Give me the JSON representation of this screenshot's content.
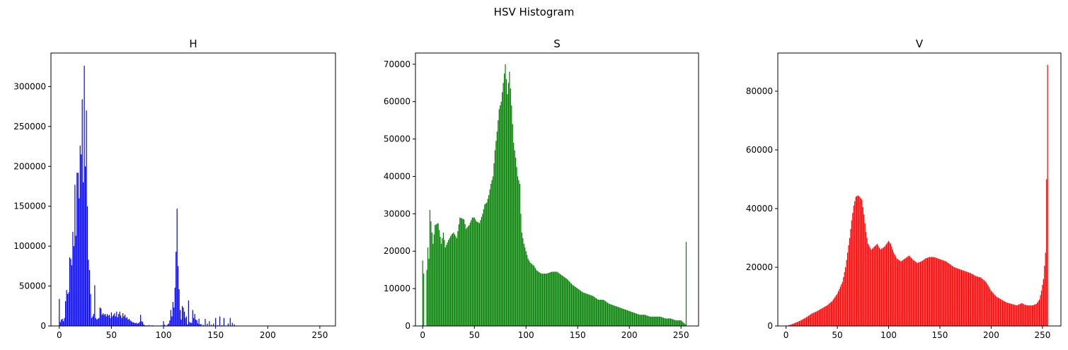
{
  "suptitle": "HSV Histogram",
  "chart_data": [
    {
      "type": "bar",
      "title": "H",
      "color": "#0000ff",
      "xlim": [
        -8,
        265
      ],
      "ylim": [
        0,
        342000
      ],
      "xticks": [
        0,
        50,
        100,
        150,
        200,
        250
      ],
      "yticks": [
        0,
        50000,
        100000,
        150000,
        200000,
        250000,
        300000
      ],
      "keypoints": [
        [
          0,
          34000
        ],
        [
          1,
          5000
        ],
        [
          2,
          8000
        ],
        [
          3,
          9000
        ],
        [
          4,
          6000
        ],
        [
          5,
          10000
        ],
        [
          6,
          31000
        ],
        [
          7,
          45000
        ],
        [
          8,
          40000
        ],
        [
          9,
          42000
        ],
        [
          10,
          86000
        ],
        [
          11,
          84000
        ],
        [
          12,
          76000
        ],
        [
          13,
          118000
        ],
        [
          14,
          100000
        ],
        [
          15,
          177000
        ],
        [
          16,
          113000
        ],
        [
          17,
          192000
        ],
        [
          18,
          192000
        ],
        [
          19,
          160000
        ],
        [
          20,
          226000
        ],
        [
          21,
          215000
        ],
        [
          22,
          284000
        ],
        [
          23,
          180000
        ],
        [
          24,
          326000
        ],
        [
          25,
          200000
        ],
        [
          26,
          270000
        ],
        [
          27,
          150000
        ],
        [
          28,
          83000
        ],
        [
          29,
          70000
        ],
        [
          30,
          40000
        ],
        [
          31,
          10000
        ],
        [
          32,
          12000
        ],
        [
          33,
          15000
        ],
        [
          34,
          51000
        ],
        [
          35,
          10000
        ],
        [
          36,
          8000
        ],
        [
          37,
          9000
        ],
        [
          38,
          10000
        ],
        [
          39,
          23000
        ],
        [
          40,
          22000
        ],
        [
          41,
          14000
        ],
        [
          42,
          16000
        ],
        [
          43,
          14000
        ],
        [
          44,
          15000
        ],
        [
          45,
          12000
        ],
        [
          46,
          15000
        ],
        [
          47,
          13000
        ],
        [
          48,
          14000
        ],
        [
          49,
          10000
        ],
        [
          50,
          17000
        ],
        [
          51,
          12000
        ],
        [
          52,
          14000
        ],
        [
          53,
          16000
        ],
        [
          54,
          12000
        ],
        [
          55,
          18000
        ],
        [
          56,
          11000
        ],
        [
          57,
          15000
        ],
        [
          58,
          18000
        ],
        [
          59,
          13000
        ],
        [
          60,
          10000
        ],
        [
          61,
          16000
        ],
        [
          62,
          12000
        ],
        [
          63,
          14000
        ],
        [
          64,
          10000
        ],
        [
          65,
          11000
        ],
        [
          66,
          8000
        ],
        [
          67,
          9000
        ],
        [
          68,
          7000
        ],
        [
          69,
          6000
        ],
        [
          70,
          5000
        ],
        [
          71,
          4500
        ],
        [
          72,
          4000
        ],
        [
          73,
          3500
        ],
        [
          74,
          4000
        ],
        [
          75,
          3000
        ],
        [
          76,
          3500
        ],
        [
          77,
          5000
        ],
        [
          78,
          14000
        ],
        [
          79,
          6000
        ],
        [
          80,
          5000
        ],
        [
          81,
          2000
        ],
        [
          82,
          1000
        ],
        [
          84,
          800
        ],
        [
          86,
          1200
        ],
        [
          88,
          600
        ],
        [
          90,
          800
        ],
        [
          94,
          500
        ],
        [
          98,
          700
        ],
        [
          100,
          6000
        ],
        [
          101,
          1500
        ],
        [
          102,
          600
        ],
        [
          104,
          2000
        ],
        [
          105,
          3000
        ],
        [
          106,
          7000
        ],
        [
          107,
          20000
        ],
        [
          108,
          12000
        ],
        [
          109,
          30000
        ],
        [
          110,
          23000
        ],
        [
          111,
          48000
        ],
        [
          112,
          93000
        ],
        [
          113,
          147000
        ],
        [
          114,
          75000
        ],
        [
          115,
          46000
        ],
        [
          116,
          20000
        ],
        [
          117,
          8000
        ],
        [
          118,
          25000
        ],
        [
          119,
          23000
        ],
        [
          120,
          18000
        ],
        [
          121,
          10000
        ],
        [
          122,
          12000
        ],
        [
          123,
          2000
        ],
        [
          124,
          32000
        ],
        [
          125,
          5000
        ],
        [
          126,
          4000
        ],
        [
          127,
          4000
        ],
        [
          128,
          20000
        ],
        [
          129,
          10000
        ],
        [
          130,
          15000
        ],
        [
          131,
          8000
        ],
        [
          132,
          7000
        ],
        [
          133,
          3000
        ],
        [
          134,
          9000
        ],
        [
          135,
          2000
        ],
        [
          136,
          2500
        ],
        [
          138,
          1500
        ],
        [
          140,
          9000
        ],
        [
          142,
          3000
        ],
        [
          144,
          6000
        ],
        [
          146,
          1500
        ],
        [
          148,
          3000
        ],
        [
          150,
          10000
        ],
        [
          152,
          1000
        ],
        [
          154,
          12000
        ],
        [
          156,
          1000
        ],
        [
          158,
          10000
        ],
        [
          160,
          500
        ],
        [
          162,
          3000
        ],
        [
          164,
          10000
        ],
        [
          166,
          4000
        ],
        [
          168,
          2000
        ]
      ]
    },
    {
      "type": "histogram",
      "title": "S",
      "color": "#008000",
      "xlim": [
        -7,
        267
      ],
      "ylim": [
        0,
        73000
      ],
      "xticks": [
        0,
        50,
        100,
        150,
        200,
        250
      ],
      "yticks": [
        0,
        10000,
        20000,
        30000,
        40000,
        50000,
        60000,
        70000
      ],
      "keypoints": [
        [
          0,
          17500
        ],
        [
          1,
          14000
        ],
        [
          2,
          0
        ],
        [
          3,
          0
        ],
        [
          4,
          15000
        ],
        [
          5,
          21000
        ],
        [
          6,
          18000
        ],
        [
          7,
          31000
        ],
        [
          8,
          28000
        ],
        [
          10,
          22000
        ],
        [
          12,
          27000
        ],
        [
          15,
          27500
        ],
        [
          18,
          22000
        ],
        [
          20,
          25000
        ],
        [
          22,
          21000
        ],
        [
          25,
          23000
        ],
        [
          28,
          24500
        ],
        [
          30,
          25000
        ],
        [
          33,
          23500
        ],
        [
          36,
          29000
        ],
        [
          40,
          28500
        ],
        [
          42,
          26000
        ],
        [
          45,
          27000
        ],
        [
          48,
          29000
        ],
        [
          50,
          29000
        ],
        [
          52,
          28000
        ],
        [
          55,
          27500
        ],
        [
          58,
          30000
        ],
        [
          60,
          32500
        ],
        [
          62,
          33000
        ],
        [
          64,
          35000
        ],
        [
          66,
          38000
        ],
        [
          68,
          40000
        ],
        [
          70,
          47000
        ],
        [
          72,
          52000
        ],
        [
          74,
          58000
        ],
        [
          76,
          60000
        ],
        [
          78,
          65000
        ],
        [
          80,
          70000
        ],
        [
          82,
          62000
        ],
        [
          84,
          68000
        ],
        [
          86,
          59000
        ],
        [
          88,
          49000
        ],
        [
          90,
          45000
        ],
        [
          92,
          40000
        ],
        [
          94,
          38000
        ],
        [
          95,
          30000
        ],
        [
          96,
          25000
        ],
        [
          98,
          22000
        ],
        [
          100,
          20000
        ],
        [
          102,
          18000
        ],
        [
          104,
          17000
        ],
        [
          106,
          16500
        ],
        [
          108,
          16000
        ],
        [
          110,
          15000
        ],
        [
          112,
          14500
        ],
        [
          115,
          14000
        ],
        [
          120,
          14000
        ],
        [
          125,
          14500
        ],
        [
          130,
          14500
        ],
        [
          135,
          13500
        ],
        [
          140,
          12500
        ],
        [
          145,
          11000
        ],
        [
          150,
          10000
        ],
        [
          155,
          9000
        ],
        [
          160,
          8500
        ],
        [
          165,
          8000
        ],
        [
          170,
          7000
        ],
        [
          175,
          7000
        ],
        [
          180,
          6000
        ],
        [
          185,
          5500
        ],
        [
          190,
          5000
        ],
        [
          195,
          4500
        ],
        [
          200,
          4000
        ],
        [
          205,
          3500
        ],
        [
          210,
          3000
        ],
        [
          215,
          3000
        ],
        [
          220,
          2500
        ],
        [
          225,
          2500
        ],
        [
          230,
          2500
        ],
        [
          235,
          2000
        ],
        [
          240,
          2000
        ],
        [
          245,
          1500
        ],
        [
          250,
          1500
        ],
        [
          252,
          1000
        ],
        [
          254,
          500
        ],
        [
          255,
          22500
        ]
      ]
    },
    {
      "type": "histogram",
      "title": "V",
      "color": "#ff0000",
      "xlim": [
        -8,
        268
      ],
      "ylim": [
        0,
        93000
      ],
      "xticks": [
        0,
        50,
        100,
        150,
        200,
        250
      ],
      "yticks": [
        0,
        20000,
        40000,
        60000,
        80000
      ],
      "keypoints": [
        [
          0,
          0
        ],
        [
          5,
          500
        ],
        [
          10,
          1200
        ],
        [
          15,
          2000
        ],
        [
          20,
          3000
        ],
        [
          25,
          4200
        ],
        [
          30,
          5000
        ],
        [
          35,
          6000
        ],
        [
          40,
          7000
        ],
        [
          45,
          8500
        ],
        [
          50,
          11000
        ],
        [
          55,
          15000
        ],
        [
          58,
          20000
        ],
        [
          60,
          25000
        ],
        [
          62,
          30000
        ],
        [
          64,
          36000
        ],
        [
          66,
          41000
        ],
        [
          68,
          44000
        ],
        [
          70,
          44500
        ],
        [
          72,
          44000
        ],
        [
          74,
          43000
        ],
        [
          76,
          38000
        ],
        [
          78,
          32000
        ],
        [
          80,
          28000
        ],
        [
          83,
          26000
        ],
        [
          86,
          27000
        ],
        [
          89,
          28000
        ],
        [
          92,
          26000
        ],
        [
          96,
          27000
        ],
        [
          100,
          29000
        ],
        [
          102,
          28000
        ],
        [
          105,
          25000
        ],
        [
          108,
          23000
        ],
        [
          112,
          22000
        ],
        [
          116,
          23000
        ],
        [
          120,
          24000
        ],
        [
          124,
          22500
        ],
        [
          128,
          21500
        ],
        [
          132,
          22000
        ],
        [
          136,
          23000
        ],
        [
          140,
          23500
        ],
        [
          144,
          23500
        ],
        [
          148,
          23000
        ],
        [
          152,
          22500
        ],
        [
          156,
          22000
        ],
        [
          160,
          21000
        ],
        [
          164,
          20000
        ],
        [
          168,
          19500
        ],
        [
          172,
          19000
        ],
        [
          176,
          18500
        ],
        [
          180,
          18000
        ],
        [
          185,
          17000
        ],
        [
          190,
          16500
        ],
        [
          195,
          15000
        ],
        [
          200,
          12000
        ],
        [
          205,
          10000
        ],
        [
          210,
          9000
        ],
        [
          215,
          8000
        ],
        [
          220,
          7500
        ],
        [
          225,
          7000
        ],
        [
          228,
          7500
        ],
        [
          230,
          7800
        ],
        [
          233,
          7200
        ],
        [
          236,
          7000
        ],
        [
          240,
          7000
        ],
        [
          244,
          7500
        ],
        [
          247,
          9000
        ],
        [
          249,
          12000
        ],
        [
          251,
          16000
        ],
        [
          253,
          25000
        ],
        [
          254,
          50000
        ],
        [
          255,
          89000
        ]
      ]
    }
  ]
}
